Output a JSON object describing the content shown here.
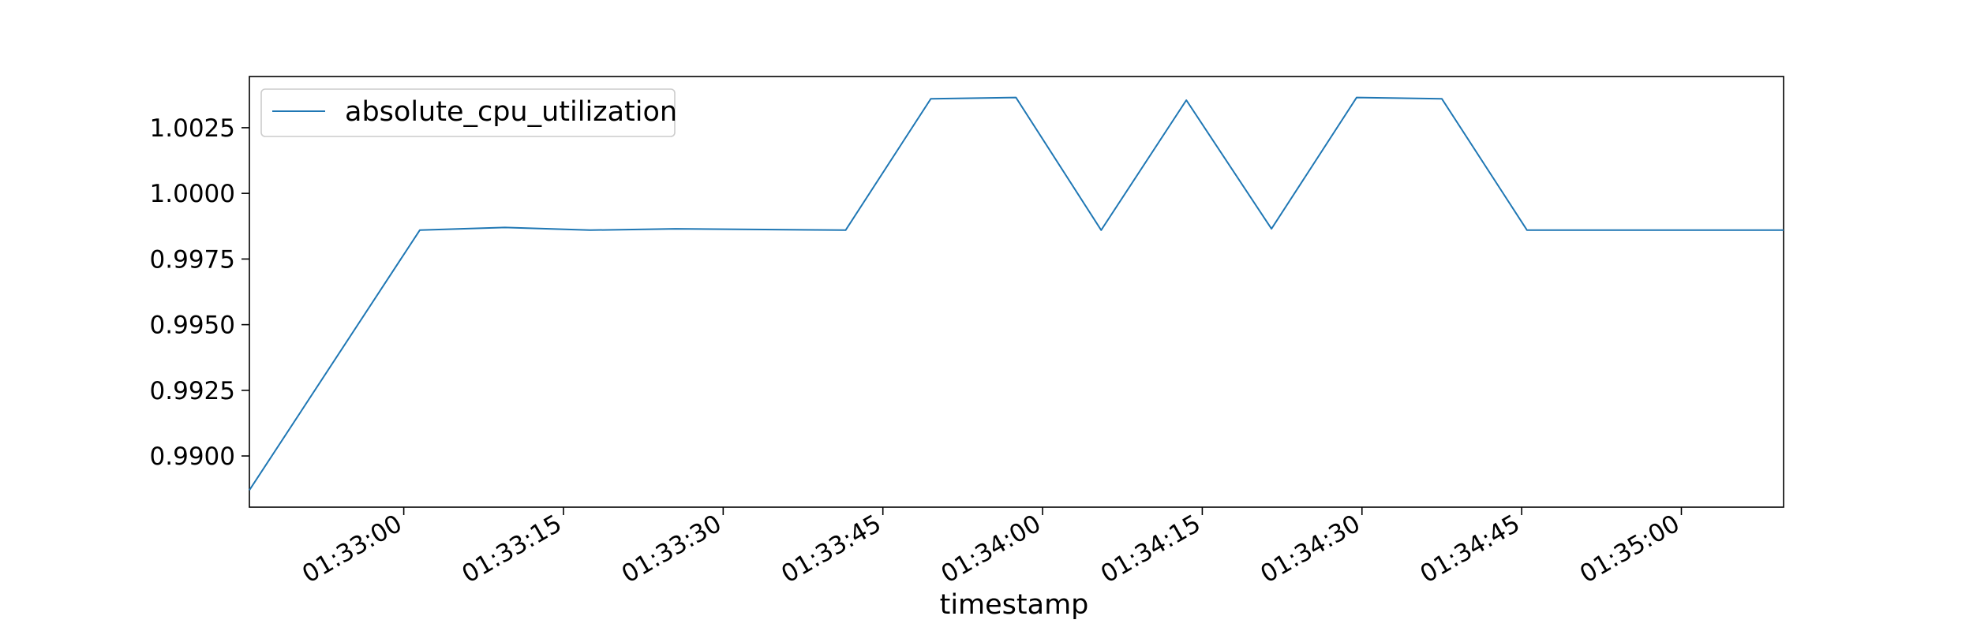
{
  "chart_data": {
    "type": "line",
    "title": "",
    "xlabel": "timestamp",
    "ylabel": "",
    "grid": false,
    "legend_position": "top-left",
    "x_tick_labels": [
      "01:33:00",
      "01:33:15",
      "01:33:30",
      "01:33:45",
      "01:34:00",
      "01:34:15",
      "01:34:30",
      "01:34:45",
      "01:35:00"
    ],
    "y_tick_labels": [
      "0.9900",
      "0.9925",
      "0.9950",
      "0.9975",
      "1.0000",
      "1.0025"
    ],
    "xlim": [
      "01:32:45.5",
      "01:35:09.6"
    ],
    "ylim": [
      0.98805,
      1.00445
    ],
    "series": [
      {
        "name": "absolute_cpu_utilization",
        "color": "#1f77b4",
        "x": [
          "01:32:45.5",
          "01:33:01.5",
          "01:33:09.5",
          "01:33:17.5",
          "01:33:25.5",
          "01:33:41.5",
          "01:33:49.5",
          "01:33:57.5",
          "01:34:05.5",
          "01:34:13.5",
          "01:34:21.5",
          "01:34:29.5",
          "01:34:37.5",
          "01:34:45.5",
          "01:34:53.5",
          "01:35:09.6"
        ],
        "values": [
          0.9887,
          0.9986,
          0.9987,
          0.9986,
          0.99865,
          0.9986,
          1.0036,
          1.00365,
          0.9986,
          1.00355,
          0.99865,
          1.00365,
          1.0036,
          0.9986,
          0.9986,
          0.9986
        ]
      }
    ]
  }
}
